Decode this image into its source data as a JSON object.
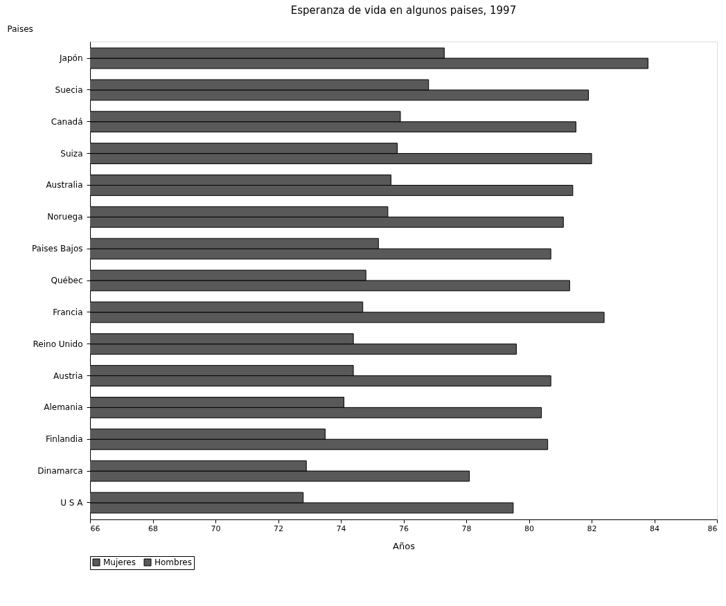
{
  "chart_data": {
    "type": "bar",
    "orientation": "horizontal",
    "title": "Esperanza de vida en algunos paises, 1997",
    "ylabel": "Paises",
    "xlabel": "Años",
    "categories": [
      "Japón",
      "Suecia",
      "Canadá",
      "Suiza",
      "Australia",
      "Noruega",
      "Paises Bajos",
      "Québec",
      "Francia",
      "Reino Unido",
      "Austria",
      "Alemania",
      "Finlandia",
      "Dinamarca",
      "U S A"
    ],
    "series": [
      {
        "name": "Mujeres",
        "color": "#595959",
        "values": [
          83.8,
          81.9,
          81.5,
          82.0,
          81.4,
          81.1,
          80.7,
          81.3,
          82.4,
          79.6,
          80.7,
          80.4,
          80.6,
          78.1,
          79.5
        ]
      },
      {
        "name": "Hombres",
        "color": "#595959",
        "values": [
          77.3,
          76.8,
          75.9,
          75.8,
          75.6,
          75.5,
          75.2,
          74.8,
          74.7,
          74.4,
          74.4,
          74.1,
          73.5,
          72.9,
          72.8
        ]
      }
    ],
    "xlim": [
      66,
      86
    ],
    "xticks": [
      66,
      68,
      70,
      72,
      74,
      76,
      78,
      80,
      82,
      84,
      86
    ],
    "grid": false,
    "legend": "bottom"
  }
}
